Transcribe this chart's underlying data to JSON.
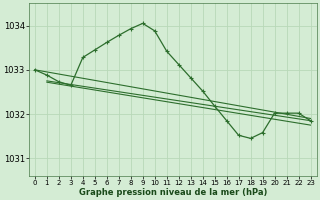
{
  "title": "Graphe pression niveau de la mer (hPa)",
  "bg_color": "#d4ecd4",
  "grid_color": "#b8d8b8",
  "line_color": "#2d6e2d",
  "xlim": [
    -0.5,
    23.5
  ],
  "ylim": [
    1030.6,
    1034.5
  ],
  "yticks": [
    1031,
    1032,
    1033,
    1034
  ],
  "xticks": [
    0,
    1,
    2,
    3,
    4,
    5,
    6,
    7,
    8,
    9,
    10,
    11,
    12,
    13,
    14,
    15,
    16,
    17,
    18,
    19,
    20,
    21,
    22,
    23
  ],
  "flat_lines": [
    {
      "x0": 0,
      "y0": 1033.0,
      "x1": 23,
      "y1": 1031.9
    },
    {
      "x0": 1,
      "y0": 1032.75,
      "x1": 23,
      "y1": 1031.85
    },
    {
      "x0": 1,
      "y0": 1032.72,
      "x1": 23,
      "y1": 1031.75
    }
  ],
  "main_x": [
    0,
    1,
    2,
    3,
    4,
    5,
    6,
    7,
    8,
    9,
    10,
    11,
    12,
    13,
    14,
    15,
    16,
    17,
    18,
    19,
    20,
    21,
    22,
    23
  ],
  "main_y": [
    1033.0,
    1032.88,
    1032.73,
    1032.65,
    1033.28,
    1033.45,
    1033.62,
    1033.78,
    1033.93,
    1034.05,
    1033.88,
    1033.42,
    1033.12,
    1032.82,
    1032.52,
    1032.18,
    1031.85,
    1031.52,
    1031.45,
    1031.58,
    1032.02,
    1032.02,
    1032.02,
    1031.85
  ],
  "title_fontsize": 6,
  "tick_fontsize": 5,
  "ytick_fontsize": 6
}
